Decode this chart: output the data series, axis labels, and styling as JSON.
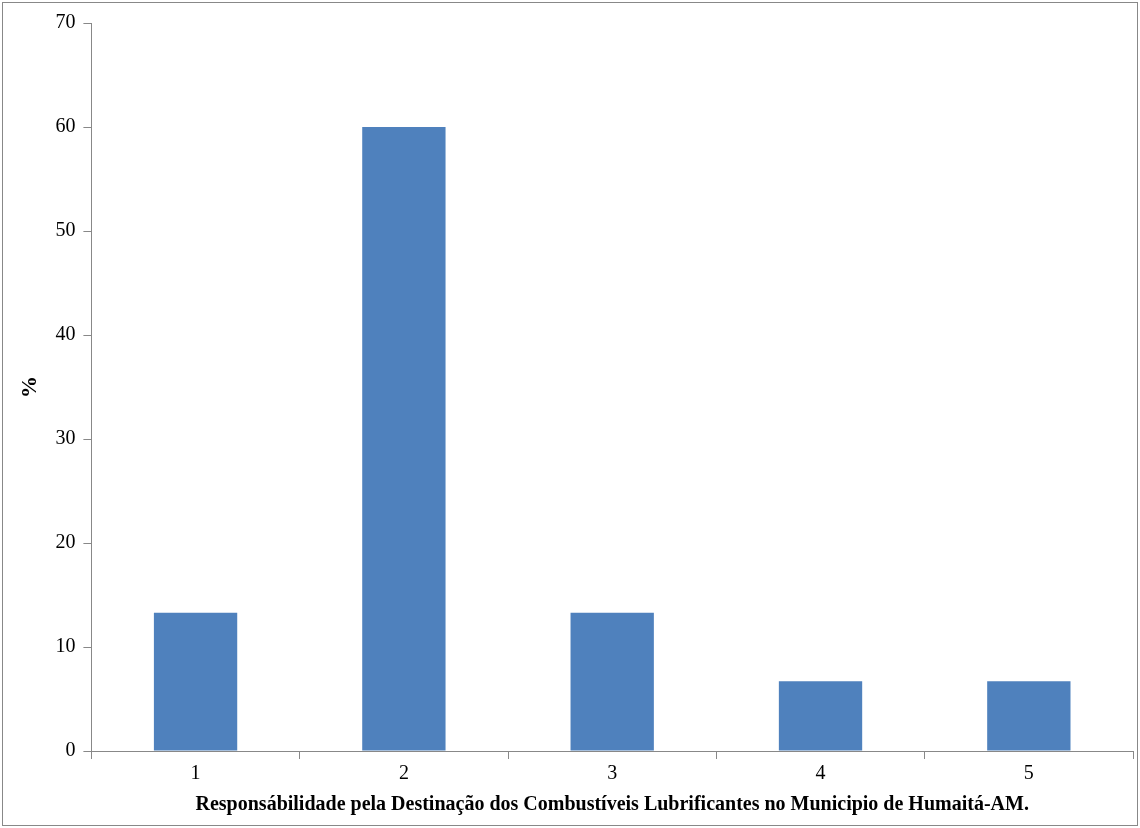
{
  "chart_data": {
    "type": "bar",
    "categories": [
      "1",
      "2",
      "3",
      "4",
      "5"
    ],
    "values": [
      13.3,
      60,
      13.3,
      6.7,
      6.7
    ],
    "color": "#4f81bd",
    "ylabel": "%",
    "xlabel": "Responsábilidade pela Destinação dos Combustíveis Lubrificantes no Municipio de Humaitá-AM.",
    "ylim": [
      0,
      70
    ],
    "yticks": [
      0,
      10,
      20,
      30,
      40,
      50,
      60,
      70
    ],
    "legend": false
  }
}
